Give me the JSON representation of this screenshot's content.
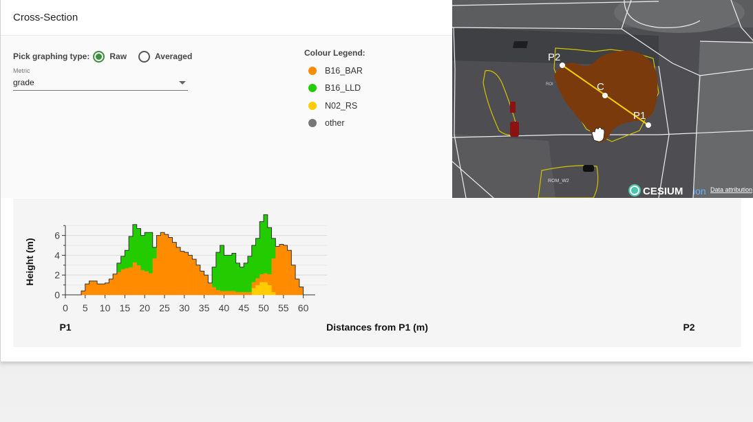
{
  "header": {
    "title": "Cross-Section"
  },
  "controls": {
    "pick_label": "Pick graphing type:",
    "options": [
      {
        "label": "Raw",
        "selected": true
      },
      {
        "label": "Averaged",
        "selected": false
      }
    ],
    "metric": {
      "label": "Metric",
      "value": "grade"
    }
  },
  "legend": {
    "title": "Colour Legend:",
    "items": [
      {
        "label": "B16_BAR",
        "color": "#ff8c00"
      },
      {
        "label": "B16_LLD",
        "color": "#22cc00"
      },
      {
        "label": "N02_RS",
        "color": "#ffcc00"
      },
      {
        "label": "other",
        "color": "#777777"
      }
    ]
  },
  "map": {
    "points": {
      "p2": "P2",
      "c": "C",
      "p1": "P1"
    },
    "labels": {
      "rom_left": "ROI",
      "rom_w2": "ROM_W2"
    },
    "brand": "CESIUM",
    "brand_suffix": "ion",
    "attribution": "Data attribution"
  },
  "chart_data": {
    "type": "area",
    "title": "",
    "xlabel": "Distances from P1 (m)",
    "ylabel": "Height (m)",
    "xlim": [
      0,
      66
    ],
    "ylim": [
      0,
      7
    ],
    "x_ticks": [
      0,
      5,
      10,
      15,
      20,
      25,
      30,
      35,
      40,
      45,
      50,
      55,
      60
    ],
    "y_ticks": [
      0,
      2,
      4,
      6
    ],
    "grid": true,
    "left_end_label": "P1",
    "right_end_label": "P2",
    "series": [
      {
        "name": "N02_RS",
        "color": "#ffcc00",
        "values": [
          0,
          0,
          0,
          0,
          0,
          0,
          0,
          0,
          0,
          0,
          0,
          0,
          0,
          0,
          0,
          0,
          0,
          0,
          0,
          0,
          0,
          0,
          0,
          0,
          0,
          0,
          0,
          0,
          0,
          0,
          0,
          0,
          0,
          0,
          0,
          0,
          0,
          0,
          0,
          0,
          0,
          0,
          0,
          0,
          0,
          0,
          0,
          0.7,
          1.0,
          1.3,
          1.3,
          1.0,
          0.3,
          0,
          0,
          0,
          0,
          0,
          0,
          0,
          0
        ]
      },
      {
        "name": "B16_BAR",
        "color": "#ff8c00",
        "values": [
          0,
          0,
          0,
          0,
          0.4,
          1.1,
          1.4,
          1.4,
          1.1,
          1.1,
          1.2,
          1.6,
          2.1,
          2.3,
          2.6,
          2.7,
          2.8,
          3.3,
          3.0,
          2.5,
          2.4,
          2.2,
          3.7,
          6.0,
          6.3,
          6.1,
          5.8,
          5.3,
          4.8,
          4.4,
          4.3,
          4.0,
          3.6,
          3.0,
          2.4,
          2.0,
          1.2,
          0.8,
          0.5,
          0.4,
          0.4,
          0.4,
          0.4,
          0.3,
          0.3,
          0.3,
          0.3,
          0.6,
          0.7,
          0.8,
          0.9,
          1.1,
          3.4,
          4.9,
          5.1,
          5.0,
          4.5,
          3.0,
          1.6,
          0.8,
          0
        ]
      },
      {
        "name": "B16_LLD",
        "color": "#22cc00",
        "values": [
          0,
          0,
          0,
          0,
          0,
          0,
          0,
          0,
          0,
          0,
          0,
          0,
          0,
          0.9,
          1.3,
          1.8,
          3.1,
          3.8,
          3.7,
          3.5,
          3.9,
          4.1,
          1.1,
          0,
          0,
          0,
          0,
          0,
          0,
          0,
          0,
          0,
          0,
          0,
          0,
          0,
          0,
          2.0,
          3.8,
          4.6,
          3.6,
          3.6,
          3.8,
          2.9,
          2.5,
          2.9,
          3.6,
          3.7,
          4.0,
          5.3,
          5.9,
          4.7,
          2.0,
          0,
          0,
          0,
          0,
          0,
          0,
          0,
          0
        ]
      }
    ]
  }
}
